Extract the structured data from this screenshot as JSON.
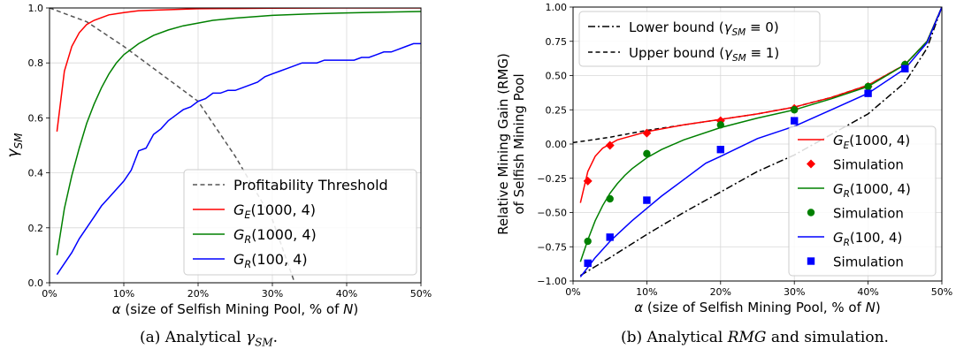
{
  "figure": {
    "captions": [
      {
        "prefix": "(a) Analytical ",
        "math": "γ",
        "sub": "SM",
        "suffix": "."
      },
      {
        "prefix": "(b) Analytical ",
        "math": "RMG",
        "sub": "",
        "suffix": " and simulation."
      }
    ]
  },
  "chart_data": [
    {
      "type": "line",
      "xlabel": "α (size of Selfish Mining Pool, % of N)",
      "ylabel": "γSM",
      "xlim": [
        0,
        50
      ],
      "ylim": [
        0,
        1
      ],
      "xticks": [
        0,
        10,
        20,
        30,
        40,
        50
      ],
      "xtick_labels": [
        "0%",
        "10%",
        "20%",
        "30%",
        "40%",
        "50%"
      ],
      "yticks": [
        0,
        0.2,
        0.4,
        0.6,
        0.8,
        1.0
      ],
      "ytick_labels": [
        "0.0",
        "0.2",
        "0.4",
        "0.6",
        "0.8",
        "1.0"
      ],
      "grid": true,
      "legend_position": "lower-right",
      "series": [
        {
          "name": "Profitability Threshold",
          "color": "#555555",
          "style": "dashed",
          "x": [
            0,
            5,
            10,
            15,
            20,
            25,
            30,
            33
          ],
          "y": [
            1.0,
            0.95,
            0.86,
            0.76,
            0.66,
            0.46,
            0.23,
            0.0
          ]
        },
        {
          "name": "G_E(1000, 4)",
          "color": "#ff0000",
          "style": "solid",
          "x": [
            1,
            2,
            3,
            4,
            5,
            6,
            7,
            8,
            10,
            12,
            15,
            20,
            25,
            30,
            40,
            50
          ],
          "y": [
            0.55,
            0.77,
            0.86,
            0.91,
            0.94,
            0.955,
            0.965,
            0.975,
            0.983,
            0.99,
            0.993,
            0.997,
            0.998,
            0.999,
            1.0,
            1.0
          ]
        },
        {
          "name": "G_R(1000, 4)",
          "color": "#008000",
          "style": "solid",
          "x": [
            1,
            2,
            3,
            4,
            5,
            6,
            7,
            8,
            9,
            10,
            12,
            14,
            16,
            18,
            20,
            22,
            25,
            30,
            35,
            40,
            45,
            50
          ],
          "y": [
            0.1,
            0.27,
            0.39,
            0.49,
            0.58,
            0.65,
            0.71,
            0.76,
            0.8,
            0.83,
            0.87,
            0.9,
            0.92,
            0.935,
            0.945,
            0.955,
            0.963,
            0.973,
            0.978,
            0.982,
            0.985,
            0.987
          ]
        },
        {
          "name": "G_R(100, 4)",
          "color": "#0000ff",
          "style": "solid",
          "x": [
            1,
            2,
            3,
            4,
            5,
            6,
            7,
            8,
            9,
            10,
            11,
            12,
            13,
            14,
            15,
            16,
            17,
            18,
            19,
            20,
            21,
            22,
            23,
            24,
            25,
            26,
            27,
            28,
            29,
            30,
            31,
            32,
            33,
            34,
            35,
            36,
            37,
            38,
            39,
            40,
            41,
            42,
            43,
            44,
            45,
            46,
            47,
            48,
            49,
            50
          ],
          "y": [
            0.03,
            0.07,
            0.11,
            0.16,
            0.2,
            0.24,
            0.28,
            0.31,
            0.34,
            0.37,
            0.41,
            0.48,
            0.49,
            0.54,
            0.56,
            0.59,
            0.61,
            0.63,
            0.64,
            0.66,
            0.67,
            0.69,
            0.69,
            0.7,
            0.7,
            0.71,
            0.72,
            0.73,
            0.75,
            0.76,
            0.77,
            0.78,
            0.79,
            0.8,
            0.8,
            0.8,
            0.81,
            0.81,
            0.81,
            0.81,
            0.81,
            0.82,
            0.82,
            0.83,
            0.84,
            0.84,
            0.85,
            0.86,
            0.87,
            0.87
          ]
        }
      ]
    },
    {
      "type": "line",
      "xlabel": "α (size of Selfish Mining Pool, % of N)",
      "ylabel": "Relative Mining Gain (RMG) of Selfish Mining Pool",
      "xlim": [
        0,
        50
      ],
      "ylim": [
        -1.0,
        1.0
      ],
      "xticks": [
        0,
        10,
        20,
        30,
        40,
        50
      ],
      "xtick_labels": [
        "0%",
        "10%",
        "20%",
        "30%",
        "40%",
        "50%"
      ],
      "yticks": [
        -1.0,
        -0.75,
        -0.5,
        -0.25,
        0.0,
        0.25,
        0.5,
        0.75,
        1.0
      ],
      "ytick_labels": [
        "−1.00",
        "−0.75",
        "−0.50",
        "−0.25",
        "0.00",
        "0.25",
        "0.50",
        "0.75",
        "1.00"
      ],
      "grid": true,
      "legend_positions": [
        "upper-left",
        "lower-right"
      ],
      "series": [
        {
          "name": "Lower bound (γSM ≡ 0)",
          "color": "#000000",
          "style": "dashdot",
          "x": [
            1,
            5,
            10,
            15,
            20,
            25,
            30,
            35,
            40,
            45,
            48,
            50
          ],
          "y": [
            -0.96,
            -0.83,
            -0.66,
            -0.5,
            -0.35,
            -0.2,
            -0.08,
            0.07,
            0.22,
            0.45,
            0.7,
            1.0
          ]
        },
        {
          "name": "Upper bound (γSM ≡ 1)",
          "color": "#000000",
          "style": "dashed",
          "x": [
            0,
            5,
            10,
            15,
            20,
            25,
            30,
            35,
            40,
            45,
            48,
            50
          ],
          "y": [
            0.01,
            0.05,
            0.1,
            0.14,
            0.18,
            0.22,
            0.27,
            0.34,
            0.43,
            0.58,
            0.75,
            1.0
          ]
        },
        {
          "name": "G_E(1000, 4)",
          "color": "#ff0000",
          "style": "solid",
          "x": [
            1,
            2,
            3,
            4,
            5,
            6,
            8,
            10,
            15,
            20,
            25,
            30,
            35,
            40,
            45,
            48,
            50
          ],
          "y": [
            -0.43,
            -0.2,
            -0.09,
            -0.03,
            0.0,
            0.03,
            0.06,
            0.09,
            0.14,
            0.18,
            0.22,
            0.27,
            0.34,
            0.43,
            0.58,
            0.75,
            1.0
          ]
        },
        {
          "name": "Simulation",
          "color": "#ff0000",
          "style": "marker",
          "marker": "diamond",
          "x": [
            2,
            5,
            10,
            20,
            30,
            40,
            45
          ],
          "y": [
            -0.27,
            -0.01,
            0.08,
            0.17,
            0.26,
            0.42,
            0.58
          ]
        },
        {
          "name": "G_R(1000, 4)",
          "color": "#008000",
          "style": "solid",
          "x": [
            1,
            2,
            3,
            4,
            5,
            6,
            7,
            8,
            10,
            12,
            15,
            20,
            25,
            30,
            35,
            40,
            45,
            48,
            50
          ],
          "y": [
            -0.86,
            -0.7,
            -0.56,
            -0.45,
            -0.36,
            -0.29,
            -0.23,
            -0.18,
            -0.1,
            -0.04,
            0.03,
            0.12,
            0.19,
            0.25,
            0.33,
            0.42,
            0.58,
            0.75,
            1.0
          ]
        },
        {
          "name": "Simulation",
          "color": "#008000",
          "style": "marker",
          "marker": "circle",
          "x": [
            2,
            5,
            10,
            20,
            30,
            40,
            45
          ],
          "y": [
            -0.71,
            -0.4,
            -0.07,
            0.14,
            0.25,
            0.42,
            0.58
          ]
        },
        {
          "name": "G_R(100, 4)",
          "color": "#0000ff",
          "style": "solid",
          "x": [
            1,
            2,
            3,
            4,
            5,
            6,
            8,
            10,
            12,
            15,
            18,
            20,
            25,
            30,
            35,
            40,
            45,
            48,
            50
          ],
          "y": [
            -0.97,
            -0.9,
            -0.83,
            -0.77,
            -0.71,
            -0.66,
            -0.56,
            -0.47,
            -0.38,
            -0.26,
            -0.14,
            -0.09,
            0.04,
            0.13,
            0.25,
            0.37,
            0.55,
            0.74,
            1.0
          ]
        },
        {
          "name": "Simulation",
          "color": "#0000ff",
          "style": "marker",
          "marker": "square",
          "x": [
            2,
            5,
            10,
            20,
            30,
            40,
            45
          ],
          "y": [
            -0.87,
            -0.68,
            -0.41,
            -0.04,
            0.17,
            0.37,
            0.55
          ]
        }
      ]
    }
  ]
}
